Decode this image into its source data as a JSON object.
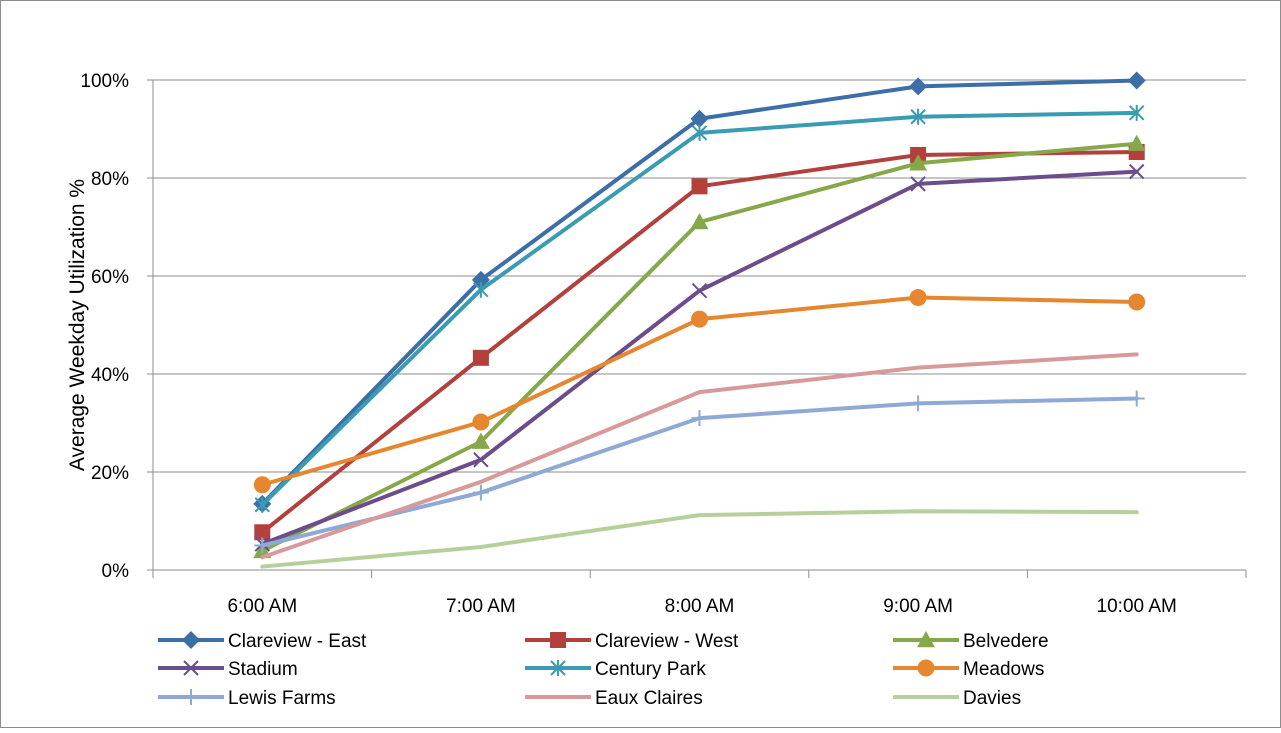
{
  "chart_data": {
    "type": "line",
    "title": "",
    "xlabel": "",
    "ylabel": "Average Weekday Utilization %",
    "categories": [
      "6:00 AM",
      "7:00 AM",
      "8:00 AM",
      "9:00 AM",
      "10:00 AM"
    ],
    "ylim": [
      0,
      100
    ],
    "yticks": [
      0,
      20,
      40,
      60,
      80,
      100
    ],
    "ytick_labels": [
      "0%",
      "20%",
      "40%",
      "60%",
      "80%",
      "100%"
    ],
    "grid": "horizontal",
    "legend_position": "bottom",
    "series": [
      {
        "name": "Clareview - East",
        "color": "#3c6ea8",
        "marker": "diamond",
        "values": [
          13.5,
          59.2,
          92.1,
          98.7,
          99.9
        ]
      },
      {
        "name": "Clareview - West",
        "color": "#b2403c",
        "marker": "square",
        "values": [
          7.7,
          43.3,
          78.3,
          84.7,
          85.3
        ]
      },
      {
        "name": "Belvedere",
        "color": "#86a84a",
        "marker": "triangle",
        "values": [
          3.9,
          26.2,
          71.0,
          83.0,
          87.0
        ]
      },
      {
        "name": "Stadium",
        "color": "#6b4d8c",
        "marker": "x",
        "values": [
          5.3,
          22.5,
          57.0,
          78.8,
          81.3
        ]
      },
      {
        "name": "Century Park",
        "color": "#3a9bb2",
        "marker": "asterisk",
        "values": [
          13.3,
          57.2,
          89.2,
          92.5,
          93.3
        ]
      },
      {
        "name": "Meadows",
        "color": "#e6862e",
        "marker": "circle",
        "values": [
          17.4,
          30.2,
          51.2,
          55.6,
          54.7
        ]
      },
      {
        "name": "Lewis Farms",
        "color": "#8fa9d6",
        "marker": "plus",
        "values": [
          5.0,
          15.8,
          31.0,
          34.0,
          35.0
        ]
      },
      {
        "name": "Eaux Claires",
        "color": "#d89a99",
        "marker": "none",
        "values": [
          2.6,
          18.0,
          36.3,
          41.3,
          44.0
        ]
      },
      {
        "name": "Davies",
        "color": "#b5d09a",
        "marker": "none",
        "values": [
          0.7,
          4.7,
          11.2,
          12.0,
          11.8
        ]
      }
    ]
  }
}
